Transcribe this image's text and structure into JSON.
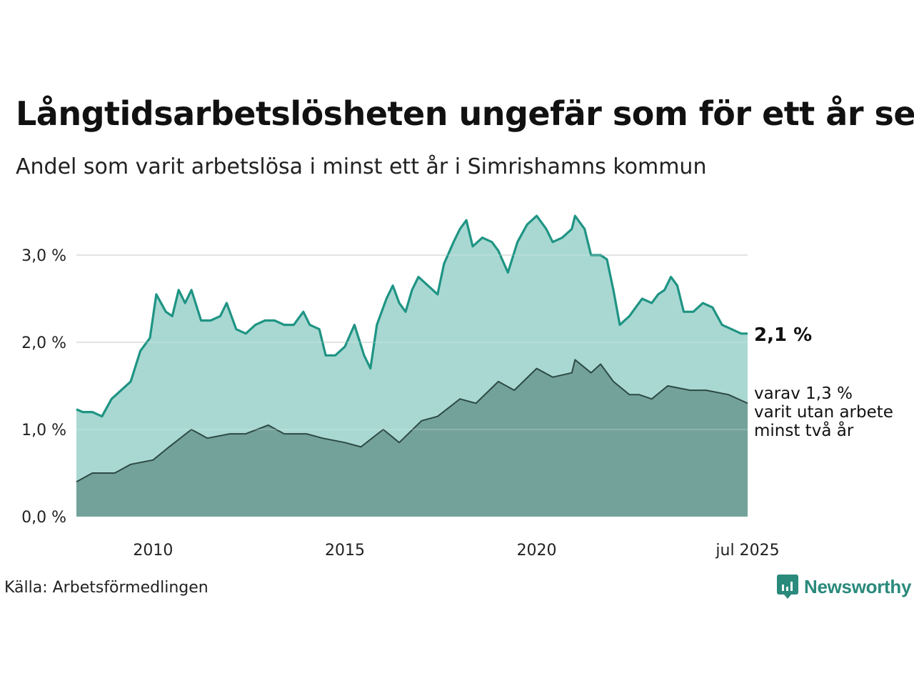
{
  "title": "Långtidsarbetslösheten ungefär som för ett år sen",
  "subtitle": "Andel som varit arbetslösa i minst ett år i Simrishamns kommun",
  "source": "Källa: Arbetsförmedlingen",
  "logo": {
    "text": "Newsworthy",
    "icon": "newsworthy-logo-icon"
  },
  "colors": {
    "upper_line": "#1f9484",
    "upper_fill": "#a2d5ce",
    "lower_line": "#2d4a44",
    "lower_fill": "#6f9d96",
    "grid": "#dddddd",
    "brand": "#2a8a7c"
  },
  "chart_data": {
    "type": "area",
    "x_start": "2008-01",
    "x_end": "2025-07",
    "x_frequency": "monthly",
    "ylim": [
      0,
      3.5
    ],
    "y_ticks": [
      {
        "value": 0,
        "label": "0,0 %"
      },
      {
        "value": 1,
        "label": "1,0 %"
      },
      {
        "value": 2,
        "label": "2,0 %"
      },
      {
        "value": 3,
        "label": "3,0 %"
      }
    ],
    "x_ticks": [
      {
        "date": "2010-01",
        "label": "2010"
      },
      {
        "date": "2015-01",
        "label": "2015"
      },
      {
        "date": "2020-01",
        "label": "2020"
      },
      {
        "date": "2025-07",
        "label": "jul 2025"
      }
    ],
    "grid": true,
    "series": [
      {
        "key": "total",
        "end_label": "2,1 %",
        "points": [
          [
            "2008-01",
            1.23
          ],
          [
            "2008-03",
            1.2
          ],
          [
            "2008-06",
            1.2
          ],
          [
            "2008-09",
            1.15
          ],
          [
            "2008-12",
            1.35
          ],
          [
            "2009-03",
            1.45
          ],
          [
            "2009-06",
            1.55
          ],
          [
            "2009-09",
            1.9
          ],
          [
            "2009-12",
            2.05
          ],
          [
            "2010-02",
            2.55
          ],
          [
            "2010-05",
            2.35
          ],
          [
            "2010-07",
            2.3
          ],
          [
            "2010-09",
            2.6
          ],
          [
            "2010-11",
            2.45
          ],
          [
            "2011-01",
            2.6
          ],
          [
            "2011-04",
            2.25
          ],
          [
            "2011-07",
            2.25
          ],
          [
            "2011-10",
            2.3
          ],
          [
            "2011-12",
            2.45
          ],
          [
            "2012-03",
            2.15
          ],
          [
            "2012-06",
            2.1
          ],
          [
            "2012-09",
            2.2
          ],
          [
            "2012-12",
            2.25
          ],
          [
            "2013-03",
            2.25
          ],
          [
            "2013-06",
            2.2
          ],
          [
            "2013-09",
            2.2
          ],
          [
            "2013-12",
            2.35
          ],
          [
            "2014-02",
            2.2
          ],
          [
            "2014-05",
            2.15
          ],
          [
            "2014-07",
            1.85
          ],
          [
            "2014-10",
            1.85
          ],
          [
            "2015-01",
            1.95
          ],
          [
            "2015-04",
            2.2
          ],
          [
            "2015-07",
            1.85
          ],
          [
            "2015-09",
            1.7
          ],
          [
            "2015-11",
            2.2
          ],
          [
            "2016-02",
            2.5
          ],
          [
            "2016-04",
            2.65
          ],
          [
            "2016-06",
            2.45
          ],
          [
            "2016-08",
            2.35
          ],
          [
            "2016-10",
            2.6
          ],
          [
            "2016-12",
            2.75
          ],
          [
            "2017-03",
            2.65
          ],
          [
            "2017-06",
            2.55
          ],
          [
            "2017-08",
            2.9
          ],
          [
            "2017-11",
            3.15
          ],
          [
            "2018-01",
            3.3
          ],
          [
            "2018-03",
            3.4
          ],
          [
            "2018-05",
            3.1
          ],
          [
            "2018-08",
            3.2
          ],
          [
            "2018-11",
            3.15
          ],
          [
            "2019-01",
            3.05
          ],
          [
            "2019-04",
            2.8
          ],
          [
            "2019-07",
            3.15
          ],
          [
            "2019-10",
            3.35
          ],
          [
            "2020-01",
            3.45
          ],
          [
            "2020-04",
            3.3
          ],
          [
            "2020-06",
            3.15
          ],
          [
            "2020-09",
            3.2
          ],
          [
            "2020-12",
            3.3
          ],
          [
            "2021-01",
            3.45
          ],
          [
            "2021-04",
            3.3
          ],
          [
            "2021-06",
            3.0
          ],
          [
            "2021-09",
            3.0
          ],
          [
            "2021-11",
            2.95
          ],
          [
            "2022-01",
            2.6
          ],
          [
            "2022-03",
            2.2
          ],
          [
            "2022-06",
            2.3
          ],
          [
            "2022-08",
            2.4
          ],
          [
            "2022-10",
            2.5
          ],
          [
            "2023-01",
            2.45
          ],
          [
            "2023-03",
            2.55
          ],
          [
            "2023-05",
            2.6
          ],
          [
            "2023-07",
            2.75
          ],
          [
            "2023-09",
            2.65
          ],
          [
            "2023-11",
            2.35
          ],
          [
            "2024-02",
            2.35
          ],
          [
            "2024-05",
            2.45
          ],
          [
            "2024-08",
            2.4
          ],
          [
            "2024-11",
            2.2
          ],
          [
            "2025-02",
            2.15
          ],
          [
            "2025-05",
            2.1
          ],
          [
            "2025-07",
            2.1
          ]
        ]
      },
      {
        "key": "two_years",
        "end_label_lines": [
          "varav 1,3 %",
          "varit utan arbete",
          "minst två år"
        ],
        "points": [
          [
            "2008-01",
            0.4
          ],
          [
            "2008-06",
            0.5
          ],
          [
            "2009-01",
            0.5
          ],
          [
            "2009-06",
            0.6
          ],
          [
            "2010-01",
            0.65
          ],
          [
            "2010-06",
            0.8
          ],
          [
            "2011-01",
            1.0
          ],
          [
            "2011-06",
            0.9
          ],
          [
            "2012-01",
            0.95
          ],
          [
            "2012-06",
            0.95
          ],
          [
            "2013-01",
            1.05
          ],
          [
            "2013-06",
            0.95
          ],
          [
            "2014-01",
            0.95
          ],
          [
            "2014-06",
            0.9
          ],
          [
            "2015-01",
            0.85
          ],
          [
            "2015-06",
            0.8
          ],
          [
            "2016-01",
            1.0
          ],
          [
            "2016-06",
            0.85
          ],
          [
            "2017-01",
            1.1
          ],
          [
            "2017-06",
            1.15
          ],
          [
            "2018-01",
            1.35
          ],
          [
            "2018-06",
            1.3
          ],
          [
            "2019-01",
            1.55
          ],
          [
            "2019-06",
            1.45
          ],
          [
            "2020-01",
            1.7
          ],
          [
            "2020-06",
            1.6
          ],
          [
            "2020-12",
            1.65
          ],
          [
            "2021-01",
            1.8
          ],
          [
            "2021-06",
            1.65
          ],
          [
            "2021-09",
            1.75
          ],
          [
            "2022-01",
            1.55
          ],
          [
            "2022-06",
            1.4
          ],
          [
            "2022-09",
            1.4
          ],
          [
            "2023-01",
            1.35
          ],
          [
            "2023-06",
            1.5
          ],
          [
            "2024-01",
            1.45
          ],
          [
            "2024-06",
            1.45
          ],
          [
            "2025-01",
            1.4
          ],
          [
            "2025-07",
            1.3
          ]
        ]
      }
    ]
  }
}
